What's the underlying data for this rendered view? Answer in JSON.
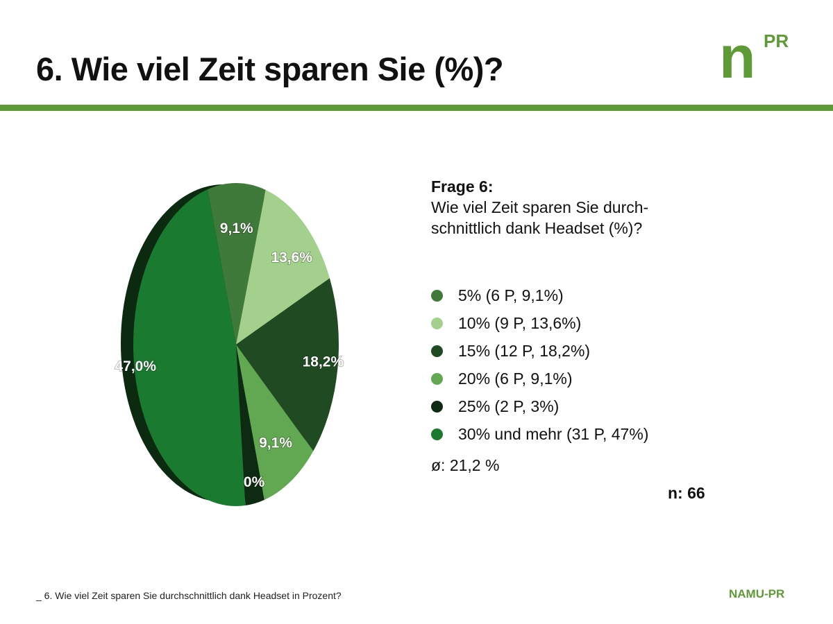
{
  "title": "6. Wie viel Zeit sparen Sie (%)?",
  "logo": {
    "letter": "n",
    "superscript": "PR"
  },
  "brand_color": "#5e9a36",
  "chart_data": {
    "type": "pie",
    "categories": [
      "5%",
      "10%",
      "15%",
      "20%",
      "25%",
      "30% und mehr"
    ],
    "values": [
      9.1,
      13.6,
      18.2,
      9.1,
      3.0,
      47.0
    ],
    "data_labels": [
      "9,1%",
      "13,6%",
      "18,2%",
      "9,1%",
      "3,0%",
      "47,0%"
    ],
    "colors": [
      "#3f7a3a",
      "#a3d08c",
      "#1f4a22",
      "#62a852",
      "#0e2a12",
      "#1a7a30"
    ],
    "legend_position": "right",
    "legend": [
      "5% (6 P, 9,1%)",
      "10% (9 P, 13,6%)",
      "15% (12 P, 18,2%)",
      "20% (6 P, 9,1%)",
      "25% (2 P, 3%)",
      "30% und mehr (31 P, 47%)"
    ]
  },
  "question": {
    "heading": "Frage 6:",
    "text": "Wie viel Zeit sparen Sie durch-schnittlich dank Headset (%)?"
  },
  "average": "ø: 21,2 %",
  "n": "n: 66",
  "footer": "_ 6. Wie viel Zeit sparen Sie durchschnittlich dank Headset in Prozent?",
  "brand": "NAMU-PR"
}
